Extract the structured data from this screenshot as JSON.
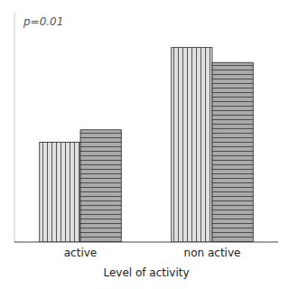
{
  "chart_data": {
    "type": "bar",
    "xlabel": "Level of activity",
    "annotation": "p=0.01",
    "categories": [
      "active",
      "non active"
    ],
    "series": [
      {
        "color": "#e0e0e0",
        "values": [
          0.4,
          0.78
        ]
      },
      {
        "color": "#aaaaaa",
        "values": [
          0.45,
          0.72
        ]
      }
    ],
    "ylim": [
      0,
      0.92
    ],
    "tick_labels": "x",
    "grid": false
  }
}
